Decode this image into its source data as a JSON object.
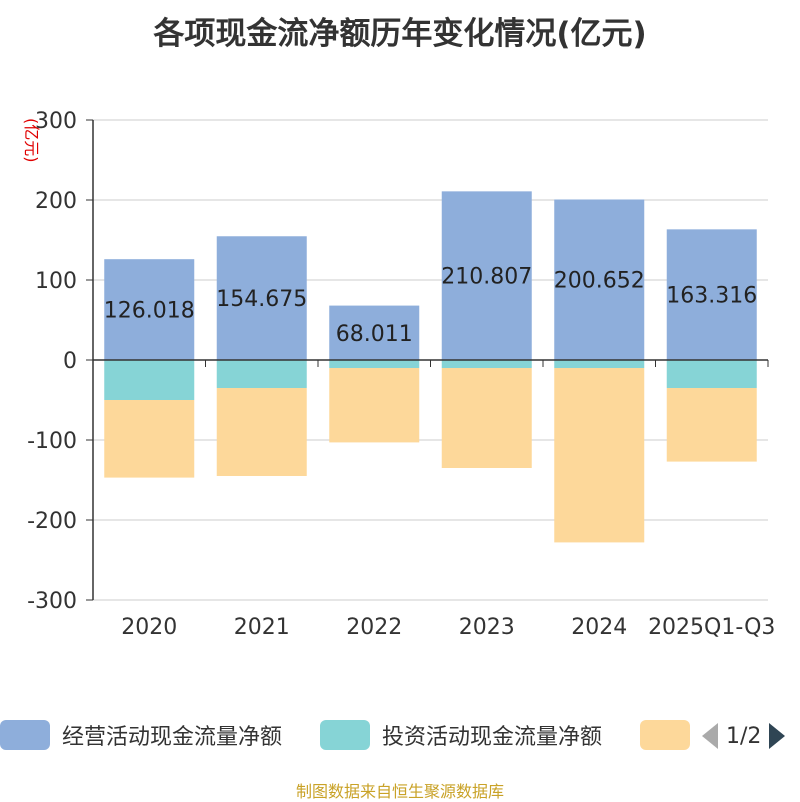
{
  "title": "各项现金流净额历年变化情况(亿元)",
  "footer": "制图数据来自恒生聚源数据库",
  "legend": {
    "items": [
      {
        "label": "经营活动现金流量净额",
        "color": "#8eaedb"
      },
      {
        "label": "投资活动现金流量净额",
        "color": "#86d4d6"
      },
      {
        "label": "",
        "color": "#fdd89a"
      }
    ],
    "page": "1/2"
  },
  "chart_data": {
    "type": "bar",
    "stacked": true,
    "unit_label": "(亿元)",
    "categories": [
      "2020",
      "2021",
      "2022",
      "2023",
      "2024",
      "2025Q1-Q3"
    ],
    "ylim": [
      -300,
      300
    ],
    "yticks": [
      -300,
      -200,
      -100,
      0,
      100,
      200,
      300
    ],
    "grid": true,
    "legend_position": "bottom",
    "series": [
      {
        "name": "经营活动现金流量净额",
        "color": "#8eaedb",
        "values": [
          126.018,
          154.675,
          68.011,
          210.807,
          200.652,
          163.316
        ],
        "show_labels": true
      },
      {
        "name": "投资活动现金流量净额",
        "color": "#86d4d6",
        "values": [
          -50,
          -35,
          -10,
          -10,
          -10,
          -35
        ]
      },
      {
        "color": "#fdd89a",
        "values": [
          -97,
          -110,
          -93,
          -125,
          -218,
          -92
        ]
      }
    ]
  }
}
